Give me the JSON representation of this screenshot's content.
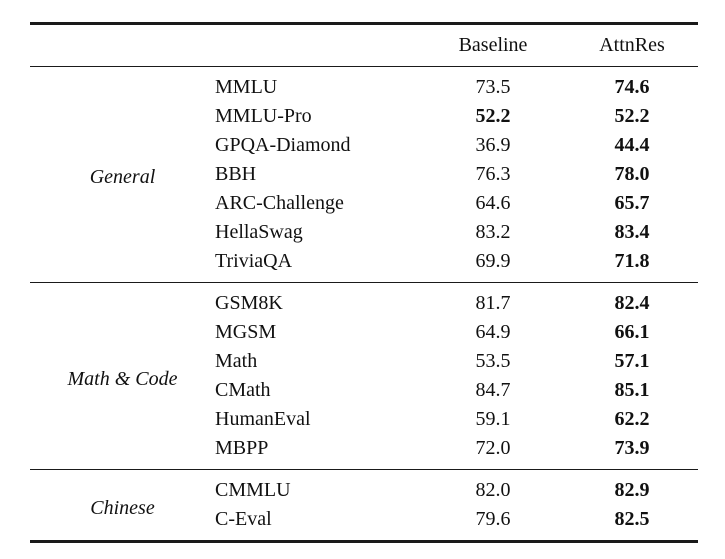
{
  "table": {
    "columns": {
      "baseline": "Baseline",
      "attnres": "AttnRes"
    },
    "colors": {
      "text": "#111111",
      "background": "#ffffff",
      "rule": "#1a1a1a"
    },
    "sections": [
      {
        "category": "General",
        "rows": [
          {
            "benchmark": "MMLU",
            "baseline": "73.5",
            "baseline_bold": false,
            "attnres": "74.6",
            "attnres_bold": true
          },
          {
            "benchmark": "MMLU-Pro",
            "baseline": "52.2",
            "baseline_bold": true,
            "attnres": "52.2",
            "attnres_bold": true
          },
          {
            "benchmark": "GPQA-Diamond",
            "baseline": "36.9",
            "baseline_bold": false,
            "attnres": "44.4",
            "attnres_bold": true
          },
          {
            "benchmark": "BBH",
            "baseline": "76.3",
            "baseline_bold": false,
            "attnres": "78.0",
            "attnres_bold": true
          },
          {
            "benchmark": "ARC-Challenge",
            "baseline": "64.6",
            "baseline_bold": false,
            "attnres": "65.7",
            "attnres_bold": true
          },
          {
            "benchmark": "HellaSwag",
            "baseline": "83.2",
            "baseline_bold": false,
            "attnres": "83.4",
            "attnres_bold": true
          },
          {
            "benchmark": "TriviaQA",
            "baseline": "69.9",
            "baseline_bold": false,
            "attnres": "71.8",
            "attnres_bold": true
          }
        ]
      },
      {
        "category": "Math & Code",
        "rows": [
          {
            "benchmark": "GSM8K",
            "baseline": "81.7",
            "baseline_bold": false,
            "attnres": "82.4",
            "attnres_bold": true
          },
          {
            "benchmark": "MGSM",
            "baseline": "64.9",
            "baseline_bold": false,
            "attnres": "66.1",
            "attnres_bold": true
          },
          {
            "benchmark": "Math",
            "baseline": "53.5",
            "baseline_bold": false,
            "attnres": "57.1",
            "attnres_bold": true
          },
          {
            "benchmark": "CMath",
            "baseline": "84.7",
            "baseline_bold": false,
            "attnres": "85.1",
            "attnres_bold": true
          },
          {
            "benchmark": "HumanEval",
            "baseline": "59.1",
            "baseline_bold": false,
            "attnres": "62.2",
            "attnres_bold": true
          },
          {
            "benchmark": "MBPP",
            "baseline": "72.0",
            "baseline_bold": false,
            "attnres": "73.9",
            "attnres_bold": true
          }
        ]
      },
      {
        "category": "Chinese",
        "rows": [
          {
            "benchmark": "CMMLU",
            "baseline": "82.0",
            "baseline_bold": false,
            "attnres": "82.9",
            "attnres_bold": true
          },
          {
            "benchmark": "C-Eval",
            "baseline": "79.6",
            "baseline_bold": false,
            "attnres": "82.5",
            "attnres_bold": true
          }
        ]
      }
    ]
  }
}
